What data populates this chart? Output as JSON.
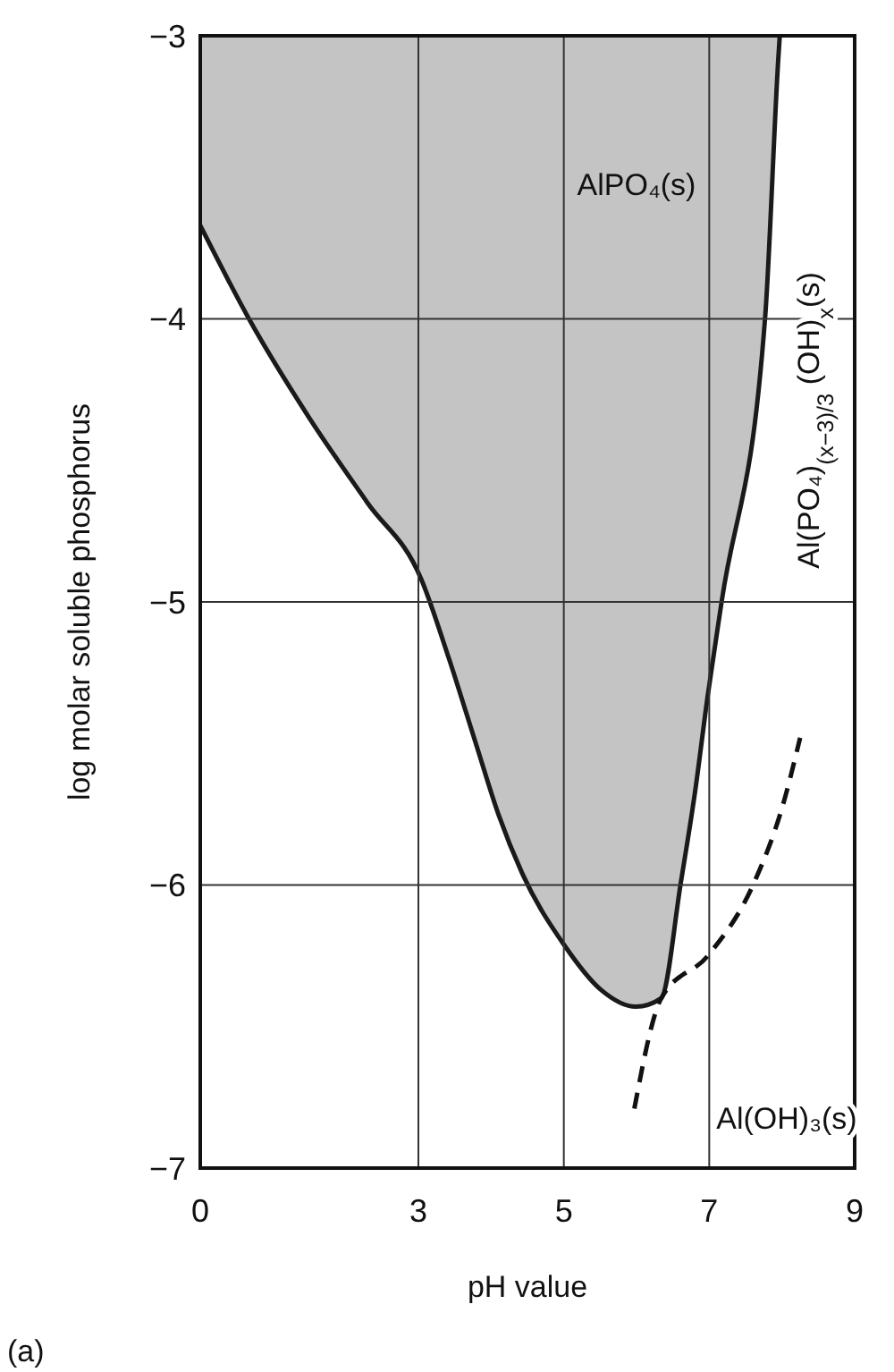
{
  "chart_data": {
    "type": "line",
    "xlabel": "pH value",
    "ylabel": "log molar soluble phosphorus",
    "xlim": [
      0,
      9
    ],
    "ylim": [
      -7,
      -3
    ],
    "xticks": [
      0,
      3,
      5,
      7,
      9
    ],
    "yticks": [
      -7,
      -6,
      -5,
      -4,
      -3
    ],
    "grid": true,
    "marker": "none",
    "series": [
      {
        "type": "area",
        "color": "#c4c4c4",
        "x": [
          0,
          0.67,
          1.5,
          2.3,
          3.04,
          3.42,
          3.79,
          4.1,
          4.43,
          5.0,
          5.51,
          5.99,
          6.34,
          6.61,
          6.8,
          6.98,
          7.17,
          7.77,
          7.95,
          7.97
        ],
        "values": [
          -3.67,
          -4.0,
          -4.35,
          -4.65,
          -4.92,
          -5.2,
          -5.5,
          -5.75,
          -5.96,
          -6.21,
          -6.37,
          -6.43,
          -6.4,
          -5.99,
          -5.68,
          -5.33,
          -5.0,
          -3.99,
          -3.08,
          -3.0
        ]
      },
      {
        "type": "line",
        "line_style": "dashed",
        "color": "#111111",
        "x": [
          5.97,
          6.34,
          6.98,
          7.62,
          8.01,
          8.25
        ],
        "values": [
          -6.79,
          -6.4,
          -6.25,
          -5.99,
          -5.72,
          -5.48
        ]
      }
    ],
    "annotations": [
      "AlPO₄(s)",
      "Al(PO₄)$_{(x−3)/3}$ (OH)$_{x}$(s)",
      "Al(OH)₃(s)",
      "(a)"
    ]
  }
}
